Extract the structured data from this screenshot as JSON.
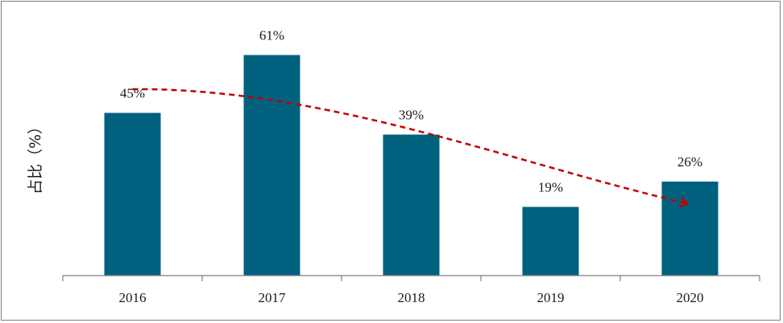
{
  "chart_data": {
    "type": "bar",
    "categories": [
      "2016",
      "2017",
      "2018",
      "2019",
      "2020"
    ],
    "values": [
      45,
      61,
      39,
      19,
      26
    ],
    "value_labels": [
      "45%",
      "61%",
      "39%",
      "19%",
      "26%"
    ],
    "title": "",
    "xlabel": "",
    "ylabel": "占比（%）",
    "ylim": [
      0,
      70
    ],
    "grid": false,
    "legend": "none",
    "bar_color": "#00617F",
    "trend_arrow": {
      "style": "dashed",
      "color": "#C00000",
      "from_category": "2016",
      "to_category": "2020"
    }
  }
}
